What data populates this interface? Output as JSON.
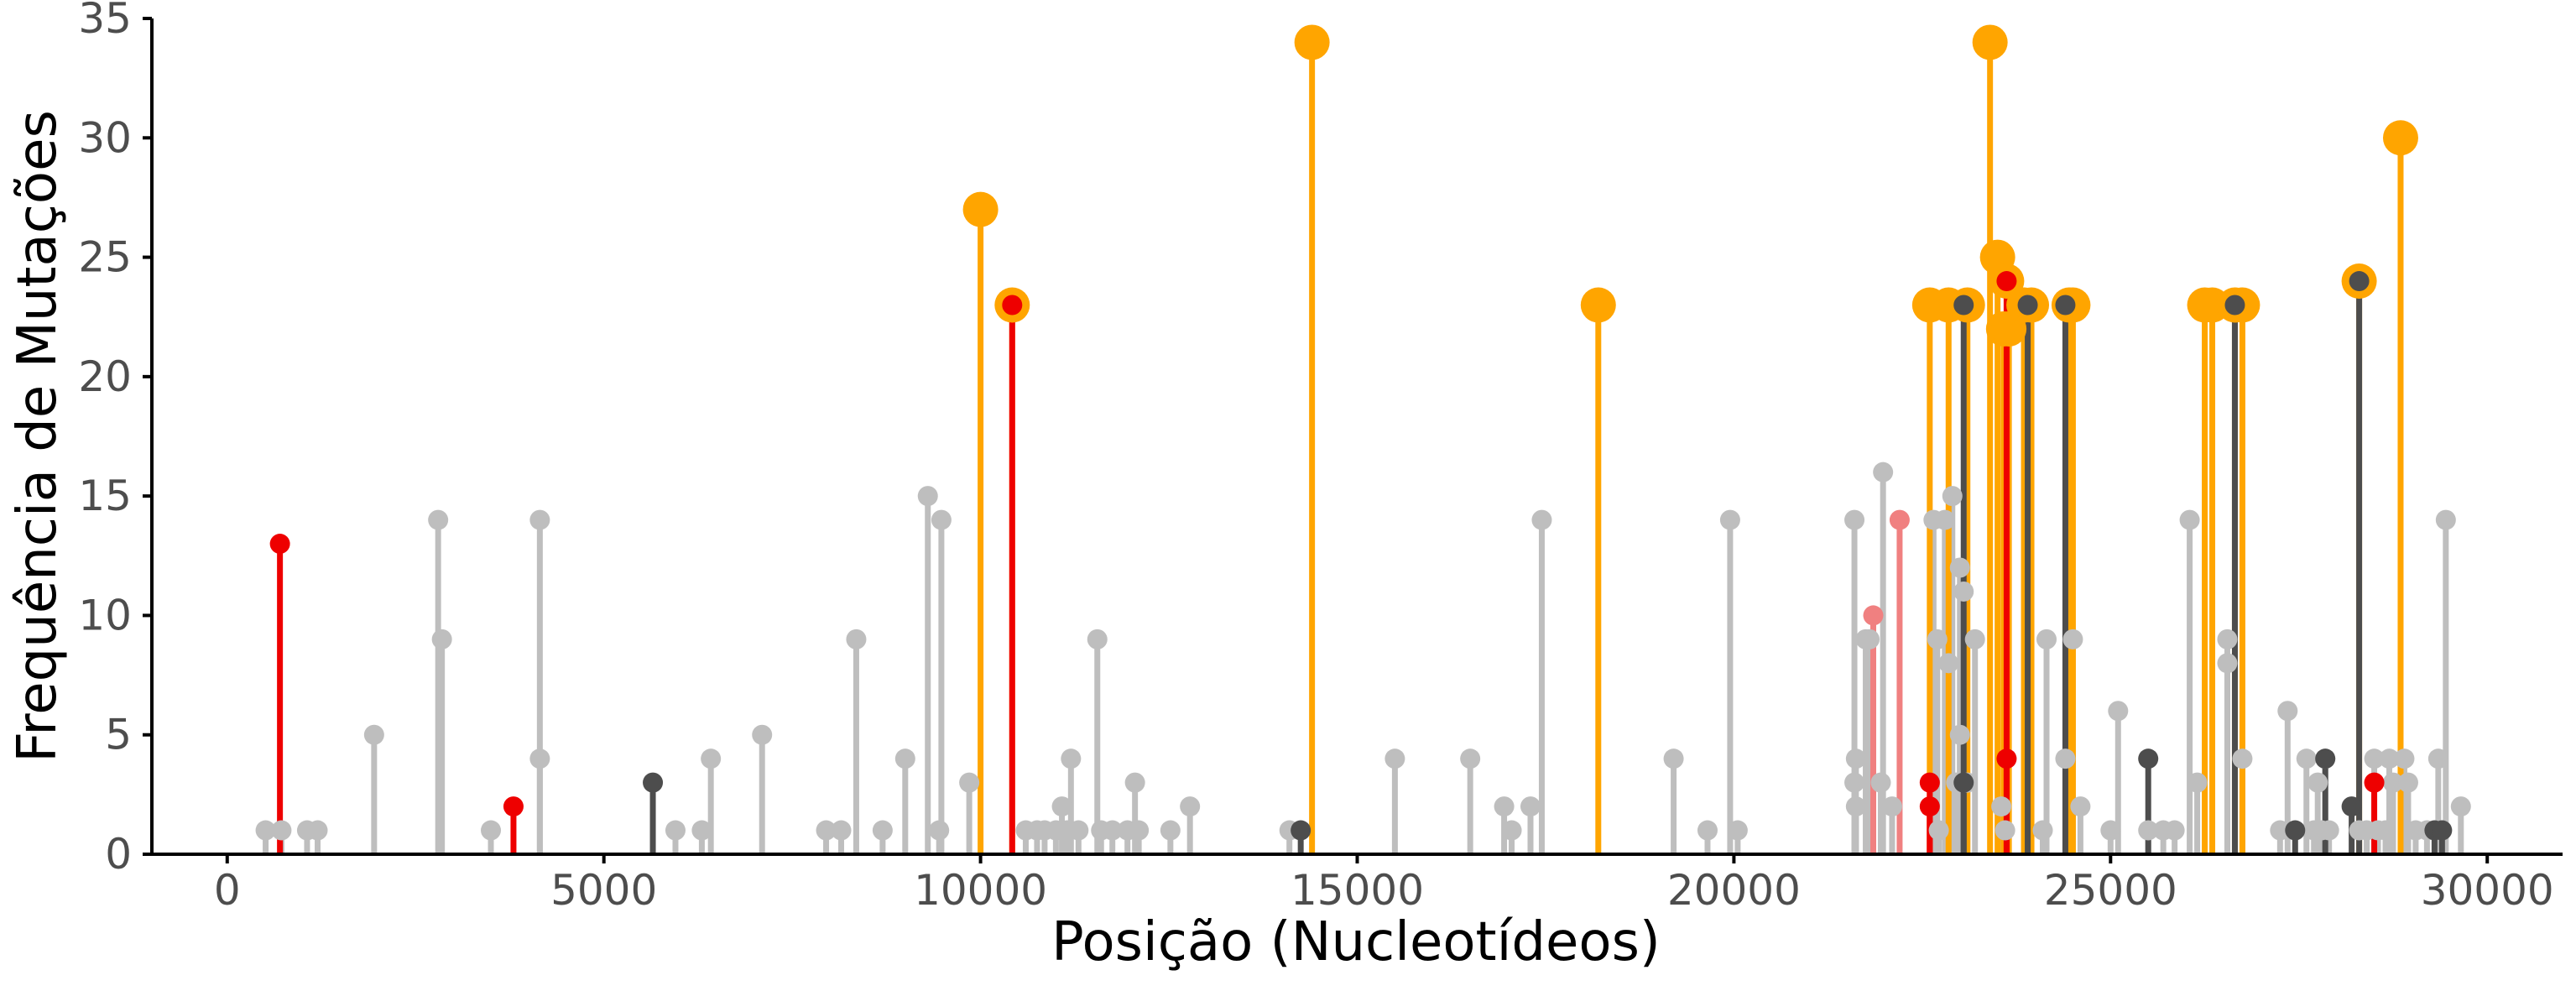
{
  "chart_data": {
    "type": "lollipop",
    "xlabel": "Posição (Nucleotídeos)",
    "ylabel": "Frequência de Mutações",
    "xlim": [
      -1000,
      31000
    ],
    "ylim": [
      0,
      35
    ],
    "xticks": [
      0,
      5000,
      10000,
      15000,
      20000,
      25000,
      30000
    ],
    "yticks": [
      0,
      5,
      10,
      15,
      20,
      25,
      30,
      35
    ],
    "grid": false,
    "legend": "none",
    "colors": {
      "grey": "#bebebe",
      "orange": "#ffa500",
      "red": "#ee0000",
      "darkgrey": "#4d4d4d",
      "lightred": "#f08080"
    },
    "series": [
      {
        "color_key": "grey",
        "points": [
          [
            510,
            1
          ],
          [
            720,
            1
          ],
          [
            1060,
            1
          ],
          [
            1200,
            1
          ],
          [
            1950,
            5
          ],
          [
            2800,
            14
          ],
          [
            2850,
            9
          ],
          [
            3500,
            1
          ],
          [
            4150,
            14
          ],
          [
            4150,
            4
          ],
          [
            5950,
            1
          ],
          [
            6300,
            1
          ],
          [
            6420,
            4
          ],
          [
            7100,
            5
          ],
          [
            7950,
            1
          ],
          [
            8150,
            1
          ],
          [
            8350,
            9
          ],
          [
            8700,
            1
          ],
          [
            9000,
            4
          ],
          [
            9300,
            15
          ],
          [
            9450,
            1
          ],
          [
            9480,
            14
          ],
          [
            9850,
            3
          ],
          [
            10600,
            1
          ],
          [
            10750,
            1
          ],
          [
            10850,
            1
          ],
          [
            11000,
            1
          ],
          [
            11080,
            2
          ],
          [
            11150,
            1
          ],
          [
            11200,
            4
          ],
          [
            11300,
            1
          ],
          [
            11550,
            9
          ],
          [
            11600,
            1
          ],
          [
            11750,
            1
          ],
          [
            11950,
            1
          ],
          [
            12050,
            3
          ],
          [
            12100,
            1
          ],
          [
            12520,
            1
          ],
          [
            12780,
            2
          ],
          [
            14100,
            1
          ],
          [
            15500,
            4
          ],
          [
            16500,
            4
          ],
          [
            16950,
            2
          ],
          [
            17050,
            1
          ],
          [
            17300,
            2
          ],
          [
            17450,
            14
          ],
          [
            19200,
            4
          ],
          [
            19650,
            1
          ],
          [
            19950,
            14
          ],
          [
            20050,
            1
          ],
          [
            21600,
            14
          ],
          [
            21600,
            3
          ],
          [
            21620,
            4
          ],
          [
            21620,
            2
          ],
          [
            21750,
            9
          ],
          [
            21800,
            9
          ],
          [
            21950,
            3
          ],
          [
            21980,
            16
          ],
          [
            22100,
            2
          ],
          [
            22650,
            14
          ],
          [
            22700,
            9
          ],
          [
            22720,
            1
          ],
          [
            22800,
            14
          ],
          [
            22850,
            8
          ],
          [
            22900,
            15
          ],
          [
            22950,
            3
          ],
          [
            23000,
            5
          ],
          [
            23000,
            12
          ],
          [
            23050,
            11
          ],
          [
            23100,
            3
          ],
          [
            23200,
            9
          ],
          [
            23550,
            2
          ],
          [
            23600,
            1
          ],
          [
            24100,
            1
          ],
          [
            24150,
            9
          ],
          [
            24400,
            4
          ],
          [
            24500,
            9
          ],
          [
            24600,
            2
          ],
          [
            25000,
            1
          ],
          [
            25100,
            6
          ],
          [
            25500,
            1
          ],
          [
            25700,
            1
          ],
          [
            25850,
            1
          ],
          [
            26050,
            14
          ],
          [
            26150,
            3
          ],
          [
            26550,
            9
          ],
          [
            26550,
            8
          ],
          [
            26750,
            4
          ],
          [
            27250,
            1
          ],
          [
            27350,
            6
          ],
          [
            27600,
            4
          ],
          [
            27700,
            1
          ],
          [
            27750,
            3
          ],
          [
            27800,
            1
          ],
          [
            27850,
            4
          ],
          [
            27900,
            1
          ],
          [
            28300,
            1
          ],
          [
            28400,
            1
          ],
          [
            28500,
            4
          ],
          [
            28550,
            1
          ],
          [
            28650,
            1
          ],
          [
            28700,
            4
          ],
          [
            28750,
            3
          ],
          [
            28900,
            4
          ],
          [
            28950,
            3
          ],
          [
            29050,
            1
          ],
          [
            29200,
            1
          ],
          [
            29350,
            4
          ],
          [
            29450,
            14
          ],
          [
            29650,
            2
          ]
        ]
      },
      {
        "color_key": "orange",
        "points": [
          [
            10000,
            27
          ],
          [
            10420,
            23
          ],
          [
            14400,
            34
          ],
          [
            18200,
            23
          ],
          [
            22600,
            23
          ],
          [
            22850,
            23
          ],
          [
            23100,
            23
          ],
          [
            23400,
            34
          ],
          [
            23500,
            25
          ],
          [
            23580,
            22
          ],
          [
            23620,
            24
          ],
          [
            23650,
            22
          ],
          [
            23850,
            23
          ],
          [
            23950,
            23
          ],
          [
            24450,
            23
          ],
          [
            24500,
            23
          ],
          [
            26250,
            23
          ],
          [
            26350,
            23
          ],
          [
            26650,
            23
          ],
          [
            26750,
            23
          ],
          [
            28300,
            24
          ],
          [
            28850,
            30
          ]
        ]
      },
      {
        "color_key": "red",
        "points": [
          [
            700,
            13
          ],
          [
            3800,
            2
          ],
          [
            10420,
            23
          ],
          [
            22600,
            3
          ],
          [
            22600,
            2
          ],
          [
            23620,
            24
          ],
          [
            23620,
            4
          ],
          [
            28500,
            3
          ]
        ]
      },
      {
        "color_key": "darkgrey",
        "points": [
          [
            5650,
            3
          ],
          [
            14250,
            1
          ],
          [
            23050,
            23
          ],
          [
            23050,
            3
          ],
          [
            23900,
            23
          ],
          [
            24400,
            23
          ],
          [
            25500,
            4
          ],
          [
            26650,
            23
          ],
          [
            27450,
            1
          ],
          [
            27850,
            4
          ],
          [
            28200,
            2
          ],
          [
            28300,
            24
          ],
          [
            29300,
            1
          ],
          [
            29400,
            1
          ]
        ]
      },
      {
        "color_key": "lightred",
        "points": [
          [
            21850,
            10
          ],
          [
            22200,
            14
          ]
        ]
      }
    ]
  }
}
